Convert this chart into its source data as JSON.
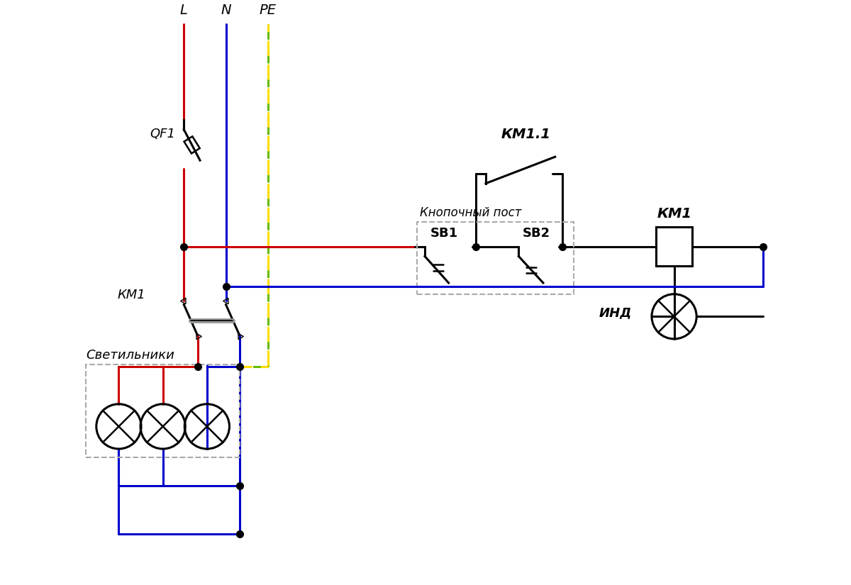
{
  "bg": "#ffffff",
  "red": "#cc0000",
  "blue": "#0000cc",
  "green": "#66bb00",
  "yellow": "#ffdd00",
  "black": "#000000",
  "gray": "#aaaaaa",
  "labels": {
    "L": "L",
    "N": "N",
    "PE": "PE",
    "QF1": "QF1",
    "KM1_main": "КМ1",
    "KM1_coil": "КМ1",
    "KM1_1": "КМ1.1",
    "SB1": "SB1",
    "SB2": "SB2",
    "button_post": "Кнопочный пост",
    "svetilniki": "Светильники",
    "IND": "ИНД"
  },
  "figsize": [
    12.0,
    8.25
  ],
  "dpi": 100
}
